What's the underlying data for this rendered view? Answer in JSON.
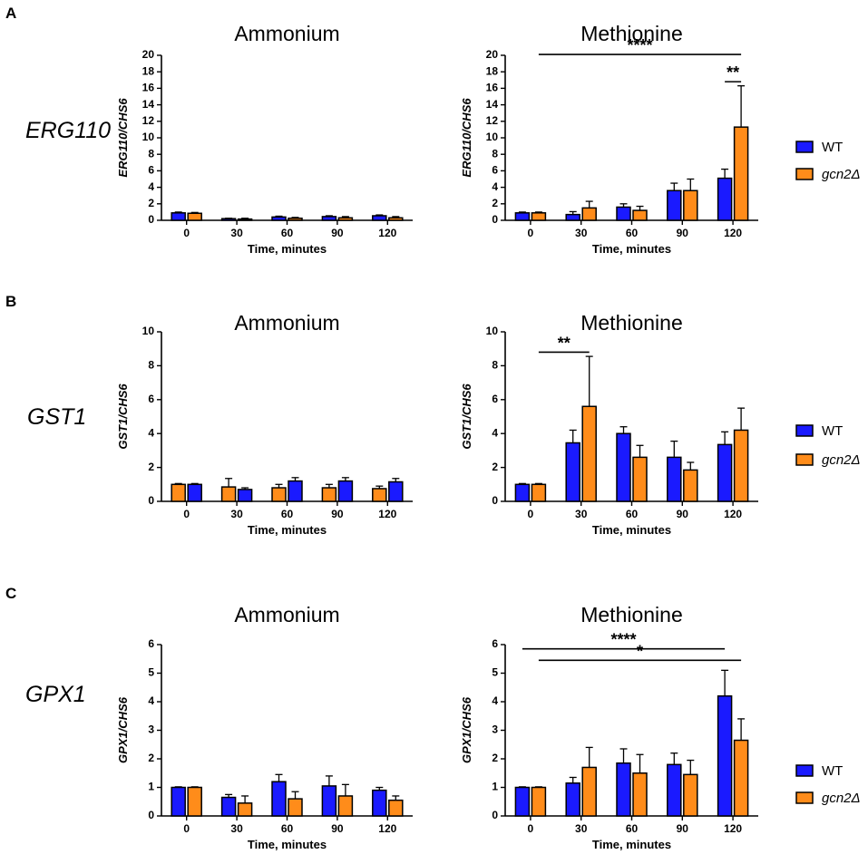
{
  "panels": [
    {
      "letter": "A",
      "gene": "ERG110"
    },
    {
      "letter": "B",
      "gene": "GST1"
    },
    {
      "letter": "C",
      "gene": "GPX1"
    }
  ],
  "legend": {
    "entries": [
      {
        "label": "WT",
        "color": "#1a1aff"
      },
      {
        "label": "gcn2Δ",
        "color": "#ff8c1a"
      }
    ]
  },
  "chart_data": [
    {
      "type": "bar",
      "panel": "A",
      "title": "Ammonium",
      "xlabel": "Time, minutes",
      "ylabel": "ERG110/CHS6",
      "categories": [
        "0",
        "30",
        "60",
        "90",
        "120"
      ],
      "ylim": [
        0,
        20
      ],
      "yticks": [
        "0",
        "2",
        "4",
        "6",
        "8",
        "10",
        "12",
        "14",
        "16",
        "18",
        "20"
      ],
      "series": [
        {
          "name": "WT",
          "color": "#1a1aff",
          "values": [
            0.9,
            0.2,
            0.4,
            0.45,
            0.55
          ],
          "errors": [
            0.1,
            0.05,
            0.1,
            0.1,
            0.1
          ]
        },
        {
          "name": "gcn2Δ",
          "color": "#ff8c1a",
          "values": [
            0.85,
            0.15,
            0.25,
            0.3,
            0.3
          ],
          "errors": [
            0.1,
            0.1,
            0.1,
            0.15,
            0.15
          ]
        }
      ],
      "significance": []
    },
    {
      "type": "bar",
      "panel": "A",
      "title": "Methionine",
      "xlabel": "Time, minutes",
      "ylabel": "ERG110/CHS6",
      "categories": [
        "0",
        "30",
        "60",
        "90",
        "120"
      ],
      "ylim": [
        0,
        20
      ],
      "yticks": [
        "0",
        "2",
        "4",
        "6",
        "8",
        "10",
        "12",
        "14",
        "16",
        "18",
        "20"
      ],
      "series": [
        {
          "name": "WT",
          "color": "#1a1aff",
          "values": [
            0.9,
            0.7,
            1.6,
            3.6,
            5.1
          ],
          "errors": [
            0.1,
            0.35,
            0.4,
            0.9,
            1.1
          ]
        },
        {
          "name": "gcn2Δ",
          "color": "#ff8c1a",
          "values": [
            0.9,
            1.5,
            1.2,
            3.6,
            11.3
          ],
          "errors": [
            0.1,
            0.8,
            0.5,
            1.4,
            5.0
          ]
        }
      ],
      "significance": [
        {
          "label": "****",
          "from": [
            "0",
            "gcn2Δ"
          ],
          "to": [
            "120",
            "gcn2Δ"
          ],
          "y": 20.1
        },
        {
          "label": "**",
          "from": [
            "120",
            "WT"
          ],
          "to": [
            "120",
            "gcn2Δ"
          ],
          "y": 16.8
        }
      ]
    },
    {
      "type": "bar",
      "panel": "B",
      "title": "Ammonium",
      "xlabel": "Time, minutes",
      "ylabel": "GST1/CHS6",
      "categories": [
        "0",
        "30",
        "60",
        "90",
        "120"
      ],
      "ylim": [
        0,
        10
      ],
      "yticks": [
        "0",
        "2",
        "4",
        "6",
        "8",
        "10"
      ],
      "series": [
        {
          "name": "gcn2Δ",
          "color": "#ff8c1a",
          "values": [
            1.0,
            0.85,
            0.8,
            0.8,
            0.75
          ],
          "errors": [
            0.05,
            0.5,
            0.2,
            0.2,
            0.15
          ]
        },
        {
          "name": "WT",
          "color": "#1a1aff",
          "values": [
            1.0,
            0.7,
            1.2,
            1.2,
            1.15
          ],
          "errors": [
            0.05,
            0.1,
            0.2,
            0.2,
            0.2
          ]
        }
      ],
      "significance": []
    },
    {
      "type": "bar",
      "panel": "B",
      "title": "Methionine",
      "xlabel": "Time, minutes",
      "ylabel": "GST1/CHS6",
      "categories": [
        "0",
        "30",
        "60",
        "90",
        "120"
      ],
      "ylim": [
        0,
        10
      ],
      "yticks": [
        "0",
        "2",
        "4",
        "6",
        "8",
        "10"
      ],
      "series": [
        {
          "name": "WT",
          "color": "#1a1aff",
          "values": [
            1.0,
            3.45,
            4.0,
            2.6,
            3.35
          ],
          "errors": [
            0.05,
            0.75,
            0.4,
            0.95,
            0.75
          ]
        },
        {
          "name": "gcn2Δ",
          "color": "#ff8c1a",
          "values": [
            1.0,
            5.6,
            2.6,
            1.85,
            4.2
          ],
          "errors": [
            0.05,
            2.95,
            0.7,
            0.45,
            1.3
          ]
        }
      ],
      "significance": [
        {
          "label": "**",
          "from": [
            "0",
            "gcn2Δ"
          ],
          "to": [
            "30",
            "gcn2Δ"
          ],
          "y": 8.8
        }
      ]
    },
    {
      "type": "bar",
      "panel": "C",
      "title": "Ammonium",
      "xlabel": "Time, minutes",
      "ylabel": "GPX1/CHS6",
      "categories": [
        "0",
        "30",
        "60",
        "90",
        "120"
      ],
      "ylim": [
        0,
        6
      ],
      "yticks": [
        "0",
        "1",
        "2",
        "3",
        "4",
        "5",
        "6"
      ],
      "series": [
        {
          "name": "WT",
          "color": "#1a1aff",
          "values": [
            1.0,
            0.65,
            1.2,
            1.05,
            0.9
          ],
          "errors": [
            0.02,
            0.1,
            0.25,
            0.35,
            0.1
          ]
        },
        {
          "name": "gcn2Δ",
          "color": "#ff8c1a",
          "values": [
            1.0,
            0.45,
            0.6,
            0.7,
            0.55
          ],
          "errors": [
            0.02,
            0.25,
            0.25,
            0.4,
            0.15
          ]
        }
      ],
      "significance": []
    },
    {
      "type": "bar",
      "panel": "C",
      "title": "Methionine",
      "xlabel": "Time, minutes",
      "ylabel": "GPX1/CHS6",
      "categories": [
        "0",
        "30",
        "60",
        "90",
        "120"
      ],
      "ylim": [
        0,
        6
      ],
      "yticks": [
        "0",
        "1",
        "2",
        "3",
        "4",
        "5",
        "6"
      ],
      "series": [
        {
          "name": "WT",
          "color": "#1a1aff",
          "values": [
            1.0,
            1.15,
            1.85,
            1.8,
            4.2
          ],
          "errors": [
            0.02,
            0.2,
            0.5,
            0.4,
            0.9
          ]
        },
        {
          "name": "gcn2Δ",
          "color": "#ff8c1a",
          "values": [
            1.0,
            1.7,
            1.5,
            1.45,
            2.65
          ],
          "errors": [
            0.02,
            0.7,
            0.65,
            0.5,
            0.75
          ]
        }
      ],
      "significance": [
        {
          "label": "****",
          "from": [
            "0",
            "WT"
          ],
          "to": [
            "120",
            "WT"
          ],
          "y": 5.85
        },
        {
          "label": "*",
          "from": [
            "0",
            "gcn2Δ"
          ],
          "to": [
            "120",
            "gcn2Δ"
          ],
          "y": 5.45
        }
      ]
    }
  ]
}
